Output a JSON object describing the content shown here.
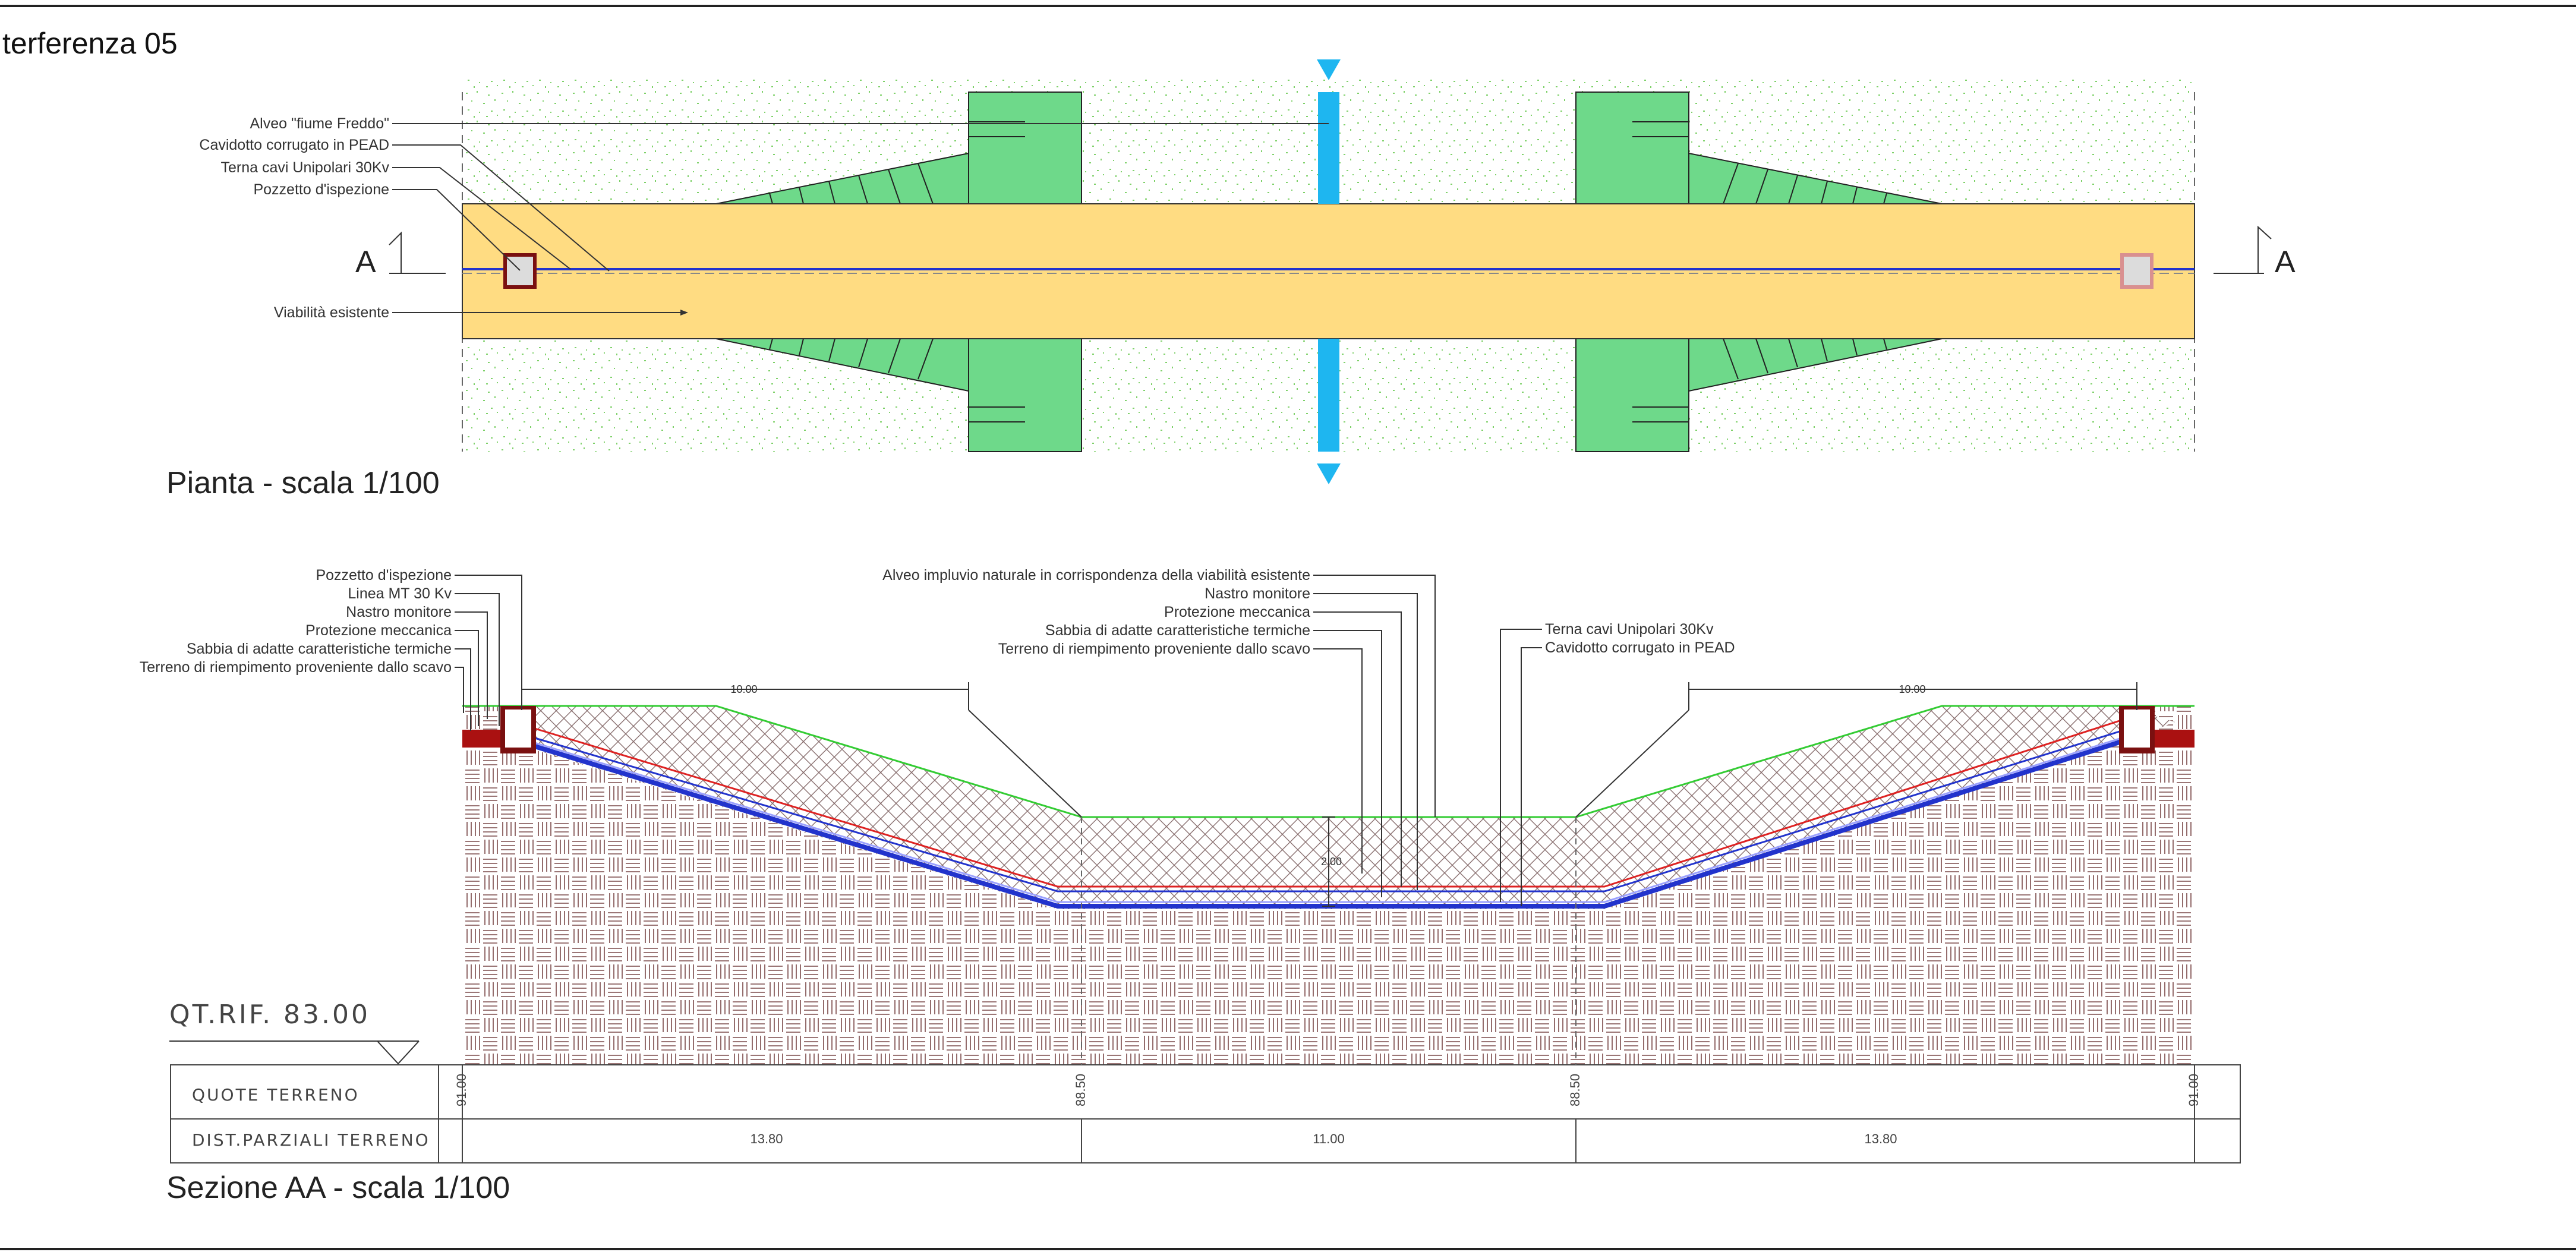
{
  "title": "terferenza 05",
  "plan": {
    "caption": "Pianta - scala 1/100",
    "labels": {
      "river": "Alveo \"fiume Freddo\"",
      "conduit": "Cavidotto corrugato in PEAD",
      "cables": "Terna cavi Unipolari 30Kv",
      "manhole": "Pozzetto d'ispezione",
      "road": "Viabilità esistente"
    },
    "section_mark_left": "A",
    "section_mark_right": "A"
  },
  "section": {
    "caption": "Sezione AA - scala 1/100",
    "left_labels": {
      "manhole": "Pozzetto d'ispezione",
      "mt_line": "Linea MT 30 Kv",
      "warning_tape": "Nastro monitore",
      "mech_protection": "Protezione meccanica",
      "sand": "Sabbia di adatte caratteristiche termiche",
      "backfill": "Terreno di riempimento proveniente dallo scavo"
    },
    "center_labels": {
      "riverbed": "Alveo impluvio naturale in corrispondenza della viabilità esistente",
      "warning_tape": "Nastro monitore",
      "mech_protection": "Protezione meccanica",
      "sand": "Sabbia di adatte caratteristiche termiche",
      "backfill": "Terreno di riempimento proveniente dallo scavo"
    },
    "right_labels": {
      "cables": "Terna cavi Unipolari 30Kv",
      "conduit": "Cavidotto corrugato in PEAD"
    },
    "dim_left": "10.00",
    "dim_right": "10.00",
    "dim_depth": "2.00",
    "reference_level": "QT.RIF.  83.00"
  },
  "profile_table": {
    "row1_header": "QUOTE  TERRENO",
    "row2_header": "DIST.PARZIALI  TERRENO",
    "elevations": [
      "91.00",
      "88.50",
      "88.50",
      "91.00"
    ],
    "distances": [
      "13.80",
      "11.00",
      "13.80"
    ]
  },
  "colors": {
    "road": "#FFDC82",
    "embankment": "#6ED98A",
    "river": "#1EB6F0",
    "cable_blue": "#2233CC",
    "cable_red": "#DD2222",
    "grass_line": "#33CC33",
    "manhole_frame": "#7A1010"
  }
}
